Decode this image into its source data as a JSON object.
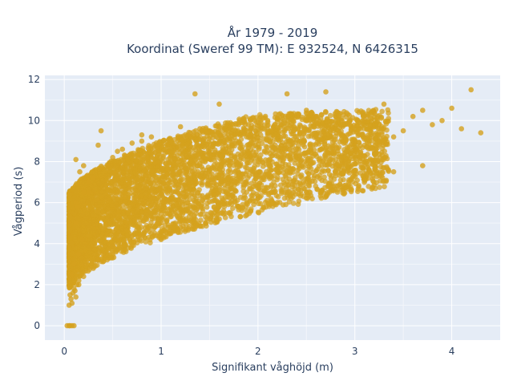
{
  "chart_data": {
    "type": "scatter",
    "title": [
      "År 1979 - 2019",
      "Koordinat (Sweref 99 TM): E 932524, N 6426315"
    ],
    "xlabel": "Signifikant våghöjd (m)",
    "ylabel": "Vågperiod (s)",
    "xlim": [
      -0.2,
      4.5
    ],
    "ylim": [
      -0.7,
      12.2
    ],
    "xticks": [
      0,
      1,
      2,
      3,
      4
    ],
    "yticks": [
      0,
      2,
      4,
      6,
      8,
      10,
      12
    ],
    "grid": true,
    "legend": "none",
    "colors": {
      "marker": "#D4A11E",
      "plot_bg": "#E5ECF6",
      "grid": "#FFFFFF",
      "text": "#2A3F5F"
    },
    "series": [
      {
        "x": [
          0.03,
          0.05,
          0.06,
          0.08,
          0.1,
          0.06,
          0.08,
          0.1,
          0.12,
          0.08,
          0.1,
          0.15,
          0.18,
          0.12,
          0.14,
          0.2,
          0.25,
          0.15,
          0.2,
          0.3,
          0.35,
          0.4,
          0.25,
          0.3,
          0.45,
          0.5,
          0.55,
          0.35,
          0.6,
          0.7,
          0.8,
          0.9,
          0.5,
          1.0,
          1.1,
          1.2,
          0.8,
          1.3,
          1.4,
          1.5,
          1.0,
          1.6,
          1.7,
          1.8,
          1.2,
          1.9,
          2.0,
          2.1,
          1.5,
          2.2,
          2.3,
          2.4,
          1.8,
          2.5,
          2.6,
          2.7,
          2.0,
          2.8,
          2.9,
          3.0,
          2.5,
          3.1,
          3.2,
          3.3,
          3.4,
          3.5,
          3.6,
          3.7,
          3.8,
          3.9,
          4.0,
          4.1,
          4.2,
          4.3,
          0.05,
          0.07,
          0.09,
          0.11,
          0.12,
          0.13,
          0.15,
          0.16,
          1.35,
          1.6,
          1.5,
          2.3,
          2.7,
          2.5,
          3.4,
          3.7,
          3.0,
          0.38,
          0.12,
          0.2
        ],
        "y": [
          0.0,
          0.0,
          0.0,
          0.0,
          0.0,
          1.5,
          1.1,
          1.8,
          1.4,
          2.5,
          3.0,
          3.5,
          4.2,
          5.0,
          5.8,
          6.5,
          7.0,
          2.0,
          2.4,
          2.8,
          3.2,
          3.5,
          6.5,
          7.2,
          7.8,
          8.2,
          8.5,
          8.8,
          8.6,
          8.9,
          9.0,
          9.2,
          3.9,
          4.2,
          4.5,
          4.8,
          9.3,
          9.4,
          9.6,
          9.5,
          5.0,
          5.2,
          5.5,
          5.8,
          9.7,
          9.8,
          9.9,
          10.0,
          5.2,
          6.0,
          6.5,
          7.0,
          9.8,
          10.0,
          10.2,
          10.4,
          6.2,
          7.5,
          8.0,
          8.5,
          10.5,
          10.0,
          10.4,
          10.8,
          9.2,
          9.5,
          10.2,
          10.5,
          9.8,
          10.0,
          10.6,
          9.6,
          11.5,
          9.4,
          1.0,
          1.3,
          1.6,
          1.7,
          6.0,
          2.0,
          2.2,
          7.5,
          11.3,
          10.8,
          8.5,
          11.3,
          11.4,
          6.5,
          7.5,
          7.8,
          9.0,
          9.5,
          8.1,
          7.8
        ]
      }
    ]
  }
}
